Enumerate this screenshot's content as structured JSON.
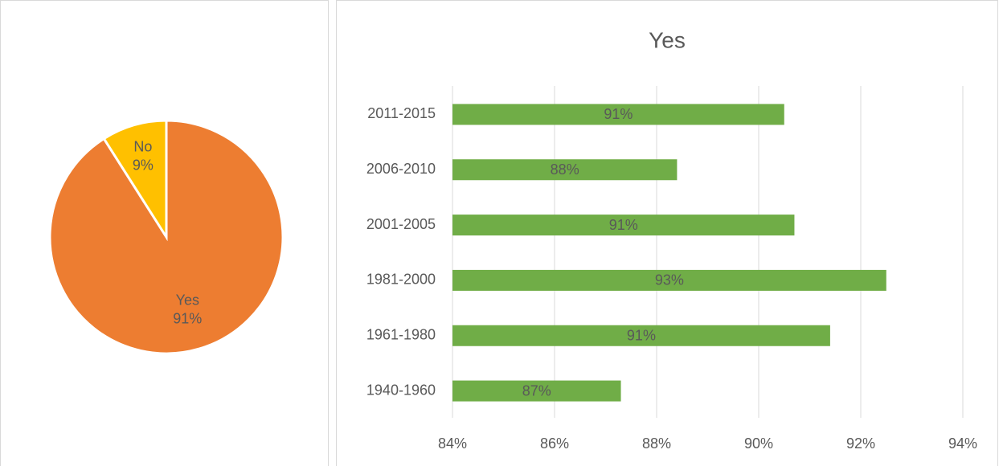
{
  "chart_data": [
    {
      "type": "pie",
      "categories": [
        "Yes",
        "No"
      ],
      "values": [
        91,
        9
      ],
      "value_labels": [
        "91%",
        "9%"
      ],
      "colors": [
        "#ed7d31",
        "#ffc000"
      ]
    },
    {
      "type": "bar",
      "orientation": "horizontal",
      "title": "Yes",
      "categories": [
        "2011-2015",
        "2006-2010",
        "2001-2005",
        "1981-2000",
        "1961-1980",
        "1940-1960"
      ],
      "values": [
        90.5,
        88.4,
        90.7,
        92.5,
        91.4,
        87.3
      ],
      "value_labels": [
        "91%",
        "88%",
        "91%",
        "93%",
        "91%",
        "87%"
      ],
      "color": "#70ad47",
      "xlim": [
        84,
        94
      ],
      "xticks": [
        {
          "value": 84,
          "label": "84%"
        },
        {
          "value": 86,
          "label": "86%"
        },
        {
          "value": 88,
          "label": "88%"
        },
        {
          "value": 90,
          "label": "90%"
        },
        {
          "value": 92,
          "label": "92%"
        },
        {
          "value": 94,
          "label": "94%"
        }
      ],
      "grid": true
    }
  ]
}
